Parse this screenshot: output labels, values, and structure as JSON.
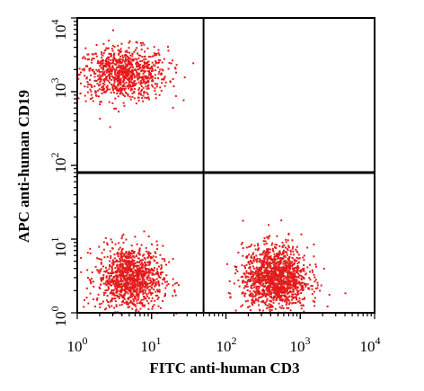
{
  "chart_data": {
    "type": "scatter",
    "title": "",
    "xlabel": "FITC anti-human CD3",
    "ylabel": "APC anti-human CD19",
    "x_scale": "log",
    "y_scale": "log",
    "xlim": [
      1,
      10000
    ],
    "ylim": [
      1,
      10000
    ],
    "x_ticks": [
      {
        "base": "10",
        "exp": "0"
      },
      {
        "base": "10",
        "exp": "1"
      },
      {
        "base": "10",
        "exp": "2"
      },
      {
        "base": "10",
        "exp": "3"
      },
      {
        "base": "10",
        "exp": "4"
      }
    ],
    "y_ticks": [
      {
        "base": "10",
        "exp": "0"
      },
      {
        "base": "10",
        "exp": "1"
      },
      {
        "base": "10",
        "exp": "2"
      },
      {
        "base": "10",
        "exp": "3"
      },
      {
        "base": "10",
        "exp": "4"
      }
    ],
    "gates": {
      "x": 50,
      "y": 80
    },
    "grid": false,
    "legend": "none",
    "point_color": "#e31b1b",
    "populations": [
      {
        "center": [
          4,
          1800
        ],
        "spread": [
          0.3,
          0.18
        ],
        "count": 900
      },
      {
        "center": [
          5,
          3
        ],
        "spread": [
          0.22,
          0.22
        ],
        "count": 1100
      },
      {
        "center": [
          450,
          3
        ],
        "spread": [
          0.22,
          0.22
        ],
        "count": 1400
      }
    ]
  }
}
